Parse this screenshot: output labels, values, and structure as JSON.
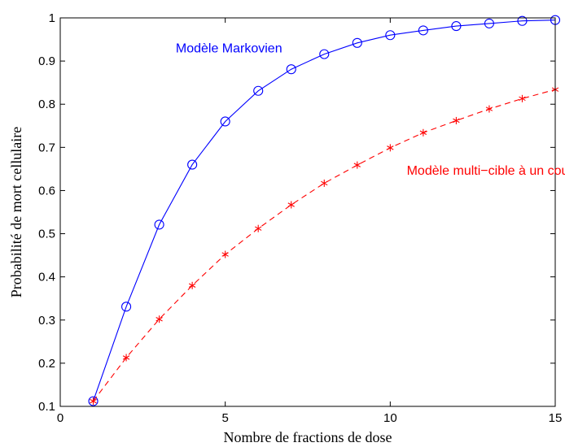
{
  "chart_data": {
    "type": "line",
    "title": "",
    "xlabel": "Nombre de fractions de dose",
    "ylabel": "Probabilité de mort cellulaire",
    "xlim": [
      0,
      15
    ],
    "ylim": [
      0.1,
      1
    ],
    "x_ticks": [
      "0",
      "5",
      "10",
      "15"
    ],
    "y_ticks": [
      "0.1",
      "0.2",
      "0.3",
      "0.4",
      "0.5",
      "0.6",
      "0.7",
      "0.8",
      "0.9",
      "1"
    ],
    "grid": false,
    "x": [
      1,
      2,
      3,
      4,
      5,
      6,
      7,
      8,
      9,
      10,
      11,
      12,
      13,
      14,
      15
    ],
    "series": [
      {
        "name": "Modèle Markovien",
        "color": "#0000ff",
        "line_style": "solid",
        "marker": "circle",
        "values": [
          0.112,
          0.331,
          0.521,
          0.66,
          0.76,
          0.831,
          0.881,
          0.916,
          0.942,
          0.96,
          0.971,
          0.981,
          0.987,
          0.993,
          0.995
        ]
      },
      {
        "name": "Modèle multi−cible à un coup",
        "color": "#ff0000",
        "line_style": "dashed",
        "marker": "asterisk",
        "values": [
          0.112,
          0.213,
          0.302,
          0.38,
          0.452,
          0.512,
          0.567,
          0.617,
          0.659,
          0.699,
          0.734,
          0.762,
          0.789,
          0.813,
          0.834
        ]
      }
    ]
  }
}
